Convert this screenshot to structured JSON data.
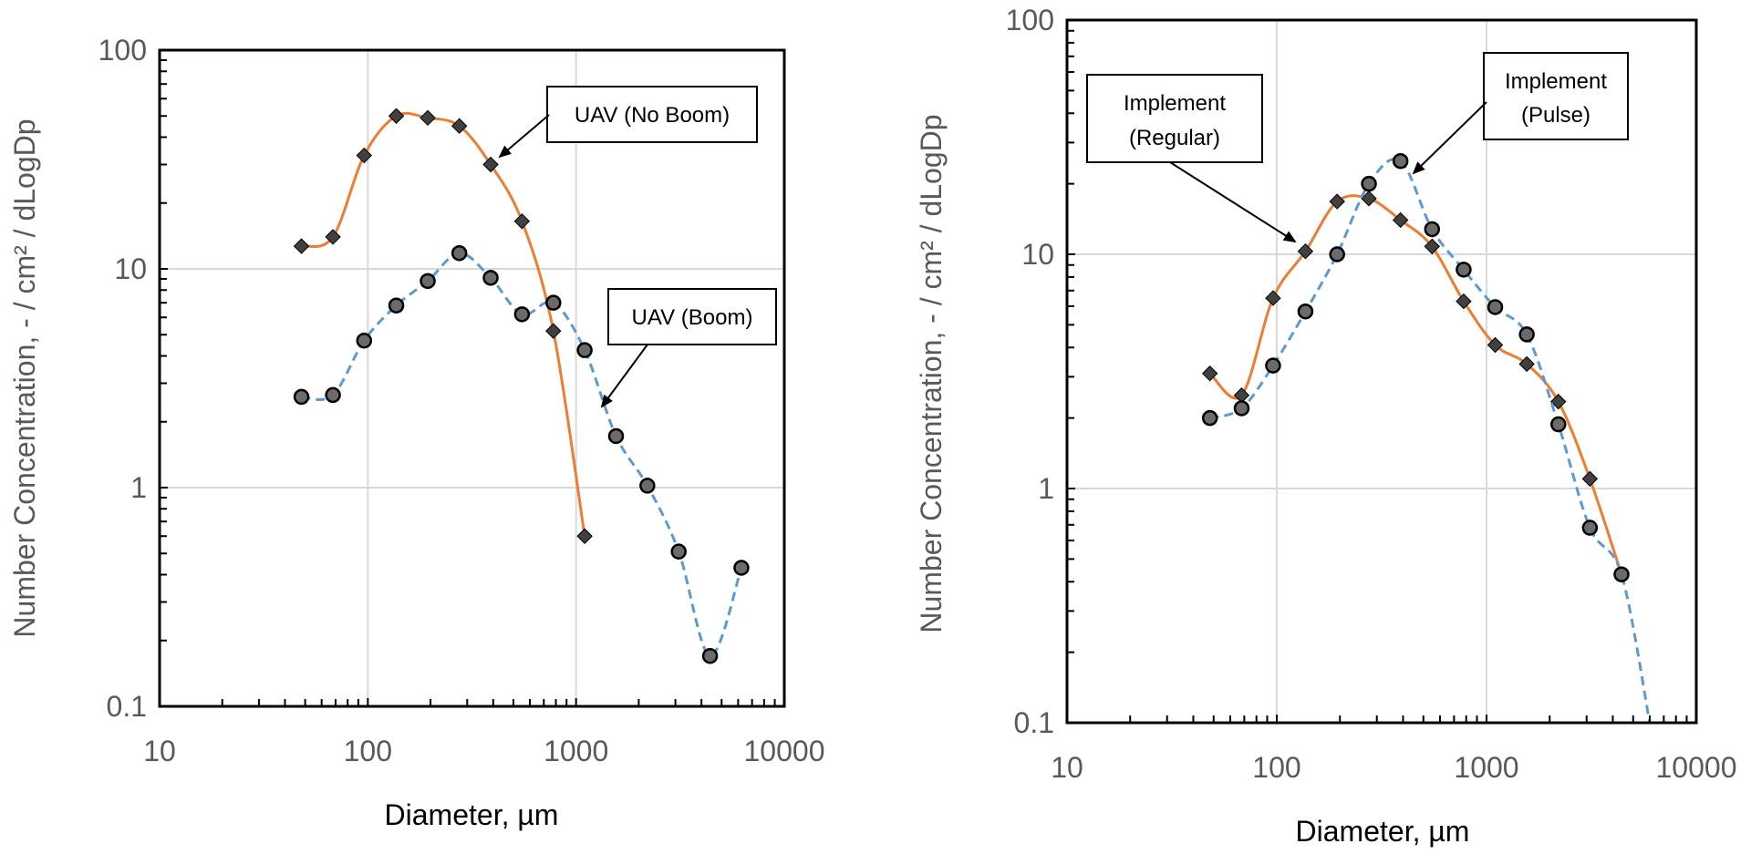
{
  "chart_data": [
    {
      "type": "line",
      "xscale": "log",
      "yscale": "log",
      "xlim": [
        10,
        10000
      ],
      "ylim": [
        0.1,
        100
      ],
      "xticks": [
        "10",
        "100",
        "1000",
        "10000"
      ],
      "yticks": [
        "0.1",
        "1",
        "10",
        "100"
      ],
      "xlabel": "Diameter, µm",
      "ylabel": "Number Concentration, - / cm² / dLogDp",
      "grid": true,
      "series": [
        {
          "name": "UAV (No Boom)",
          "line_color": "#ED7D31",
          "line_style": "solid",
          "marker": "diamond",
          "x": [
            48,
            68,
            96,
            137,
            194,
            275,
            389,
            550,
            778,
            1100
          ],
          "y": [
            12.7,
            14.0,
            33.0,
            50.0,
            49.0,
            45.0,
            30.0,
            16.5,
            5.2,
            0.6
          ]
        },
        {
          "name": "UAV (Boom)",
          "line_color": "#5B9BD5",
          "line_style": "dashed",
          "marker": "circle",
          "x": [
            48,
            68,
            96,
            137,
            194,
            275,
            389,
            550,
            778,
            1100,
            1556,
            2200,
            3111,
            4400,
            6222
          ],
          "y": [
            2.6,
            2.65,
            4.7,
            6.8,
            8.8,
            11.8,
            9.1,
            6.2,
            7.0,
            4.25,
            1.72,
            1.02,
            0.51,
            0.17,
            0.43
          ]
        }
      ]
    },
    {
      "type": "line",
      "xscale": "log",
      "yscale": "log",
      "xlim": [
        10,
        10000
      ],
      "ylim": [
        0.1,
        100
      ],
      "xticks": [
        "10",
        "100",
        "1000",
        "10000"
      ],
      "yticks": [
        "0.1",
        "1",
        "10",
        "100"
      ],
      "xlabel": "Diameter, µm",
      "ylabel": "Number Concentration, - / cm² / dLogDp",
      "grid": true,
      "series": [
        {
          "name": "Implement (Regular)",
          "line_color": "#ED7D31",
          "line_style": "solid",
          "marker": "diamond",
          "x": [
            48,
            68,
            96,
            137,
            194,
            275,
            389,
            550,
            778,
            1100,
            1556,
            2200,
            3111,
            4400
          ],
          "y": [
            3.1,
            2.5,
            6.5,
            10.3,
            16.8,
            17.3,
            14.0,
            10.8,
            6.3,
            4.1,
            3.4,
            2.35,
            1.1,
            0.43
          ]
        },
        {
          "name": "Implement (Pulse)",
          "line_color": "#5B9BD5",
          "line_style": "dashed",
          "marker": "circle",
          "x": [
            48,
            68,
            96,
            137,
            194,
            275,
            389,
            550,
            778,
            1100,
            1556,
            2200,
            3111,
            4400,
            6000
          ],
          "y": [
            2.0,
            2.2,
            3.35,
            5.7,
            10.0,
            20.0,
            25.0,
            12.8,
            8.6,
            5.95,
            4.55,
            1.88,
            0.68,
            0.43,
            0.1
          ]
        }
      ]
    }
  ],
  "callouts": [
    {
      "lines": [
        "UAV (No Boom)"
      ]
    },
    {
      "lines": [
        "UAV (Boom)"
      ]
    },
    {
      "lines": [
        "Implement",
        "(Regular)"
      ]
    },
    {
      "lines": [
        "Implement",
        "(Pulse)"
      ]
    }
  ]
}
